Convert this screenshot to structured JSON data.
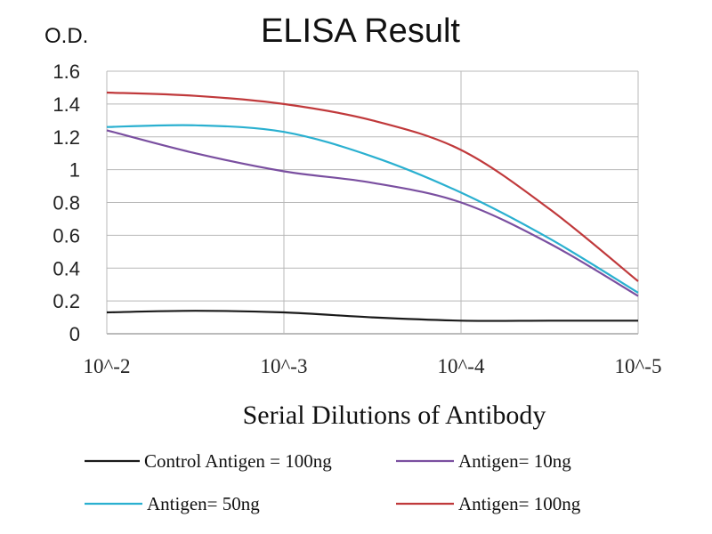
{
  "chart_data": {
    "type": "line",
    "title": "ELISA Result",
    "ylabel": "O.D.",
    "xlabel": "Serial Dilutions of Antibody",
    "categories": [
      "10^-2",
      "10^-3",
      "10^-4",
      "10^-5"
    ],
    "y_ticks": [
      "0",
      "0.2",
      "0.4",
      "0.6",
      "0.8",
      "1",
      "1.2",
      "1.4",
      "1.6"
    ],
    "ylim": [
      0,
      1.6
    ],
    "grid": true,
    "legend_position": "bottom",
    "x": [
      1,
      1.5,
      2,
      2.5,
      3,
      3.5,
      4
    ],
    "series": [
      {
        "name": "Control Antigen = 100ng",
        "color": "#1a1a1a",
        "values": [
          0.13,
          0.14,
          0.13,
          0.1,
          0.08,
          0.08,
          0.08
        ]
      },
      {
        "name": "Antigen= 10ng",
        "color": "#7a4fa0",
        "values": [
          1.24,
          1.1,
          0.99,
          0.92,
          0.8,
          0.55,
          0.23
        ]
      },
      {
        "name": "Antigen= 50ng",
        "color": "#2ab0d0",
        "values": [
          1.26,
          1.27,
          1.23,
          1.08,
          0.86,
          0.58,
          0.25
        ]
      },
      {
        "name": "Antigen= 100ng",
        "color": "#c0393b",
        "values": [
          1.47,
          1.45,
          1.4,
          1.3,
          1.12,
          0.76,
          0.32
        ]
      }
    ]
  }
}
